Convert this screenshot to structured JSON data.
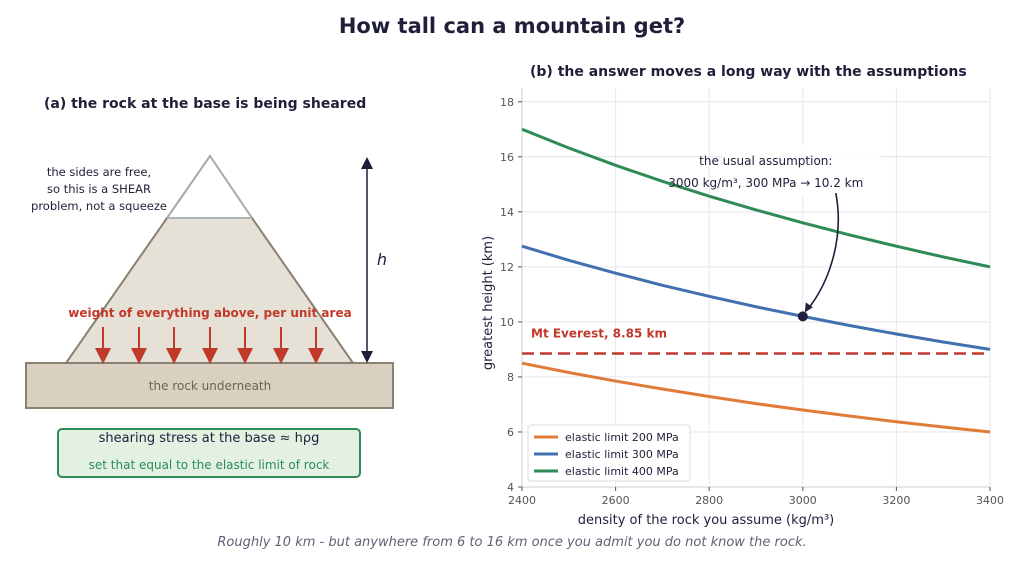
{
  "title": "How tall can a mountain get?",
  "caption": "Roughly 10 km - but anywhere from 6 to 16 km once you admit you do not know the rock.",
  "panel_a": {
    "title": "(a) the rock at the base is being sheared",
    "side_note": [
      "the sides are free,",
      "so this is a SHEAR",
      "problem, not a squeeze"
    ],
    "weight_label": "weight of everything above, per unit area",
    "height_label": "h",
    "base_label": "the rock underneath",
    "result_main": "shearing stress at the base ≈ hρg",
    "result_sub": "set that equal to the elastic limit of rock",
    "colors": {
      "mountain_fill": "#e5e1d6",
      "base_fill": "#d9d0c1",
      "arrow": "#c0392b",
      "result": "#2e8b57"
    }
  },
  "chart_data": {
    "type": "line",
    "title": "(b) the answer moves a long way with the assumptions",
    "xlabel": "density of the rock you assume  (kg/m³)",
    "ylabel": "greatest height  (km)",
    "xlim": [
      2400,
      3400
    ],
    "ylim": [
      4,
      18.5
    ],
    "xticks": [
      2400,
      2600,
      2800,
      3000,
      3200,
      3400
    ],
    "yticks": [
      4,
      6,
      8,
      10,
      12,
      14,
      16,
      18
    ],
    "grid": true,
    "legend_position": "bottom-left",
    "x": [
      2400,
      2500,
      2600,
      2700,
      2800,
      2900,
      3000,
      3100,
      3200,
      3300,
      3400
    ],
    "series": [
      {
        "name": "elastic limit 200 MPa",
        "color": "#e07b39",
        "values": [
          8.5,
          8.16,
          7.85,
          7.56,
          7.29,
          7.03,
          6.8,
          6.58,
          6.37,
          6.18,
          6.0
        ]
      },
      {
        "name": "elastic limit 300 MPa",
        "color": "#4170b0",
        "values": [
          12.75,
          12.24,
          11.77,
          11.33,
          10.93,
          10.55,
          10.2,
          9.87,
          9.56,
          9.27,
          9.0
        ]
      },
      {
        "name": "elastic limit 400 MPa",
        "color": "#2e8b57",
        "values": [
          17.0,
          16.32,
          15.69,
          15.11,
          14.57,
          14.07,
          13.6,
          13.16,
          12.75,
          12.36,
          12.0
        ]
      }
    ],
    "reference_line": {
      "label": "Mt Everest, 8.85 km",
      "y": 8.85,
      "color": "#c0392b"
    },
    "highlight_point": {
      "x": 3000,
      "y": 10.2
    },
    "annotation": {
      "line1": "the usual assumption:",
      "line2": "3000 kg/m³, 300 MPa → 10.2 km"
    }
  }
}
